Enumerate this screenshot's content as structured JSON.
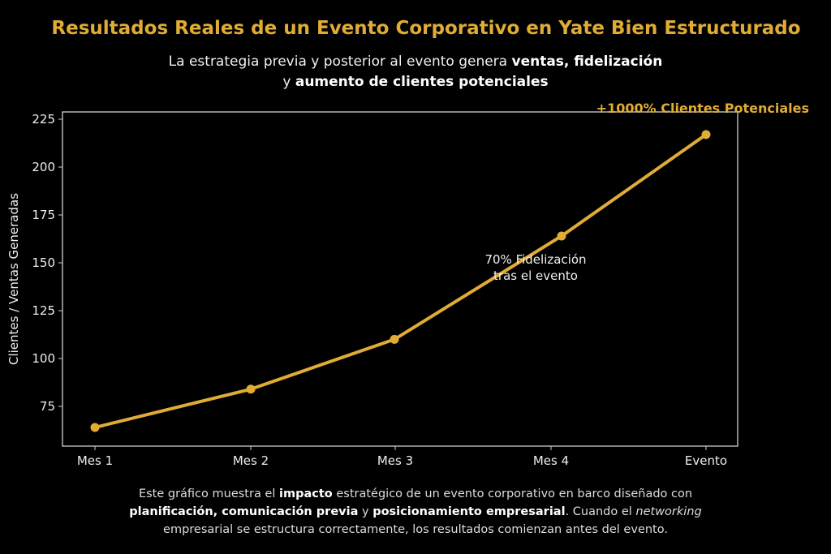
{
  "title": "Resultados Reales de un Evento Corporativo en Yate Bien Estructurado",
  "subtitle": {
    "line1": [
      {
        "text": "La estrategia previa y posterior al evento genera ",
        "bold": false
      },
      {
        "text": "ventas, fidelización",
        "bold": true
      }
    ],
    "line2": [
      {
        "text": "y ",
        "bold": false
      },
      {
        "text": "aumento de clientes potenciales",
        "bold": true
      }
    ]
  },
  "footer": {
    "line1": [
      {
        "text": "Este gráfico muestra el ",
        "style": "normal"
      },
      {
        "text": "impacto",
        "style": "bold"
      },
      {
        "text": " estratégico de un evento corporativo en barco diseñado con",
        "style": "normal"
      }
    ],
    "line2": [
      {
        "text": "planificación, comunicación previa",
        "style": "bold"
      },
      {
        "text": " y ",
        "style": "normal"
      },
      {
        "text": "posicionamiento empresarial",
        "style": "bold"
      },
      {
        "text": ". Cuando el ",
        "style": "normal"
      },
      {
        "text": "networking",
        "style": "italic"
      }
    ],
    "line3": [
      {
        "text": "empresarial se estructura correctamente, los resultados comienzan antes del evento.",
        "style": "normal"
      }
    ]
  },
  "chart_data": {
    "type": "line",
    "categories": [
      "Mes 1",
      "Mes 2",
      "Mes 3",
      "Mes 4",
      "Evento"
    ],
    "values": [
      64,
      84,
      110,
      164,
      217
    ],
    "ylabel": "Clientes / Ventas Generadas",
    "xlabel": "",
    "yticks": [
      75,
      100,
      125,
      150,
      175,
      200,
      225
    ],
    "ylim": [
      54,
      229
    ],
    "grid": false,
    "line_color": "#e0ac34",
    "annotations": [
      {
        "text_lines": [
          "70% Fidelización",
          "tras el evento"
        ],
        "near": "Mes 4"
      },
      {
        "text_lines": [
          "+1000% Clientes Potenciales"
        ],
        "near": "Evento",
        "color": "#e0ac34"
      }
    ]
  }
}
